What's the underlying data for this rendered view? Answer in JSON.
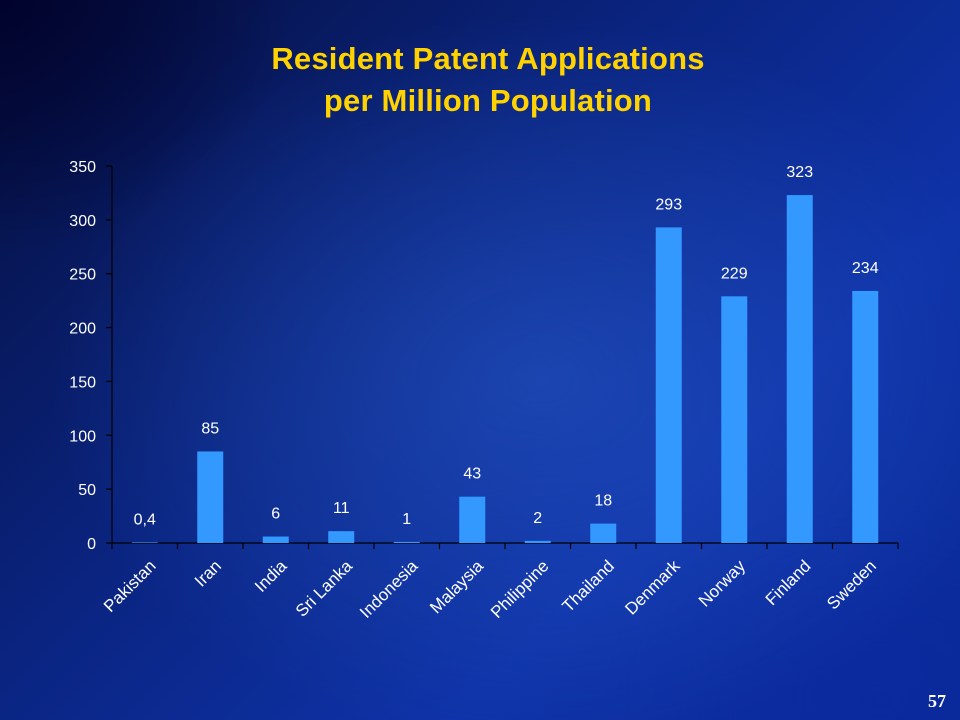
{
  "slide": {
    "page_number": "57"
  },
  "colors": {
    "bar": "#3399ff",
    "text": "#ffffff",
    "title": "#ffd200",
    "axis": "#000000"
  },
  "chart_data": {
    "type": "bar",
    "title": "Resident Patent Applications",
    "subtitle": "per Million Population",
    "categories": [
      "Pakistan",
      "Iran",
      "India",
      "Sri Lanka",
      "Indonesia",
      "Malaysia",
      "Philippine",
      "Thailand",
      "Denmark",
      "Norway",
      "Finland",
      "Sweden"
    ],
    "values": [
      0.4,
      85,
      6,
      11,
      1,
      43,
      2,
      18,
      293,
      229,
      323,
      234
    ],
    "data_labels": [
      "0,4",
      "85",
      "6",
      "11",
      "1",
      "43",
      "2",
      "18",
      "293",
      "229",
      "323",
      "234"
    ],
    "ylim": [
      0,
      350
    ],
    "yticks": [
      0,
      50,
      100,
      150,
      200,
      250,
      300,
      350
    ],
    "xlabel": "",
    "ylabel": "",
    "grid": false,
    "legend": "none"
  }
}
